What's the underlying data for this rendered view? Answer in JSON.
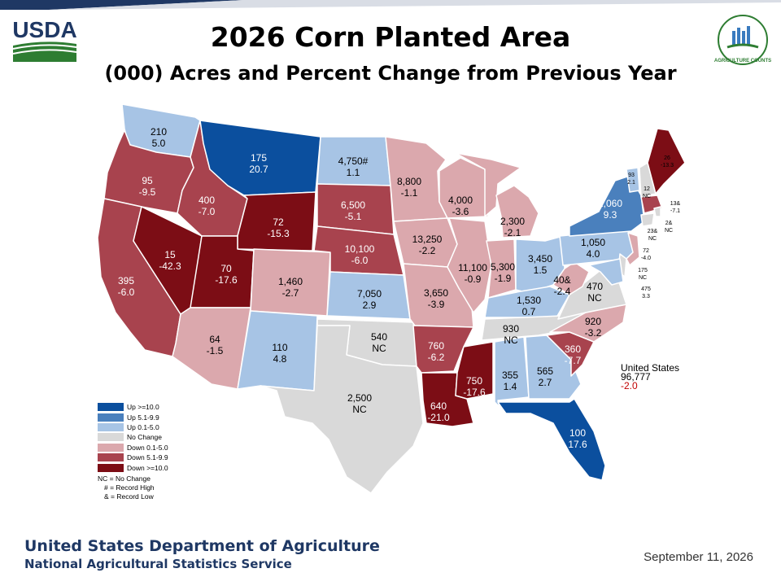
{
  "header": {
    "title": "2026 Corn Planted Area",
    "subtitle": "(000) Acres and Percent Change from Previous Year",
    "logo_text": "USDA",
    "badge_text": "AGRICULTURE COUNTS"
  },
  "colors": {
    "up_10": "#0b4f9e",
    "up_5": "#4a80bd",
    "up_0": "#a7c4e5",
    "no_change": "#d9d9d9",
    "down_0": "#dba8ad",
    "down_5": "#a8434e",
    "down_10": "#7c0d15",
    "border": "#ffffff",
    "us_change": "#c00000",
    "footer_text": "#1f3864"
  },
  "states": [
    {
      "id": "WA",
      "acres": "210",
      "change": "5.0",
      "cls": "up_0"
    },
    {
      "id": "OR",
      "acres": "95",
      "change": "-9.5",
      "cls": "down_5"
    },
    {
      "id": "CA",
      "acres": "395",
      "change": "-6.0",
      "cls": "down_5"
    },
    {
      "id": "ID",
      "acres": "400",
      "change": "-7.0",
      "cls": "down_5"
    },
    {
      "id": "NV",
      "acres": "15",
      "change": "-42.3",
      "cls": "down_10"
    },
    {
      "id": "MT",
      "acres": "175",
      "change": "20.7",
      "cls": "up_10"
    },
    {
      "id": "WY",
      "acres": "72",
      "change": "-15.3",
      "cls": "down_10"
    },
    {
      "id": "UT",
      "acres": "70",
      "change": "-17.6",
      "cls": "down_10"
    },
    {
      "id": "AZ",
      "acres": "64",
      "change": "-1.5",
      "cls": "down_0"
    },
    {
      "id": "CO",
      "acres": "1,460",
      "change": "-2.7",
      "cls": "down_0"
    },
    {
      "id": "NM",
      "acres": "110",
      "change": "4.8",
      "cls": "up_0"
    },
    {
      "id": "ND",
      "acres": "4,750#",
      "change": "1.1",
      "cls": "up_0"
    },
    {
      "id": "SD",
      "acres": "6,500",
      "change": "-5.1",
      "cls": "down_5"
    },
    {
      "id": "NE",
      "acres": "10,100",
      "change": "-6.0",
      "cls": "down_5"
    },
    {
      "id": "KS",
      "acres": "7,050",
      "change": "2.9",
      "cls": "up_0"
    },
    {
      "id": "OK",
      "acres": "540",
      "change": "NC",
      "cls": "no_change"
    },
    {
      "id": "TX",
      "acres": "2,500",
      "change": "NC",
      "cls": "no_change"
    },
    {
      "id": "MN",
      "acres": "8,800",
      "change": "-1.1",
      "cls": "down_0"
    },
    {
      "id": "IA",
      "acres": "13,250",
      "change": "-2.2",
      "cls": "down_0"
    },
    {
      "id": "MO",
      "acres": "3,650",
      "change": "-3.9",
      "cls": "down_0"
    },
    {
      "id": "AR",
      "acres": "760",
      "change": "-6.2",
      "cls": "down_5"
    },
    {
      "id": "LA",
      "acres": "640",
      "change": "-21.0",
      "cls": "down_10"
    },
    {
      "id": "WI",
      "acres": "4,000",
      "change": "-3.6",
      "cls": "down_0"
    },
    {
      "id": "IL",
      "acres": "11,100",
      "change": "-0.9",
      "cls": "down_0"
    },
    {
      "id": "MI",
      "acres": "2,300",
      "change": "-2.1",
      "cls": "down_0"
    },
    {
      "id": "IN",
      "acres": "5,300",
      "change": "-1.9",
      "cls": "down_0"
    },
    {
      "id": "OH",
      "acres": "3,450",
      "change": "1.5",
      "cls": "up_0"
    },
    {
      "id": "KY",
      "acres": "1,530",
      "change": "0.7",
      "cls": "up_0"
    },
    {
      "id": "TN",
      "acres": "930",
      "change": "NC",
      "cls": "no_change"
    },
    {
      "id": "MS",
      "acres": "750",
      "change": "-17.6",
      "cls": "down_10"
    },
    {
      "id": "AL",
      "acres": "355",
      "change": "1.4",
      "cls": "up_0"
    },
    {
      "id": "GA",
      "acres": "565",
      "change": "2.7",
      "cls": "up_0"
    },
    {
      "id": "FL",
      "acres": "100",
      "change": "17.6",
      "cls": "up_10"
    },
    {
      "id": "SC",
      "acres": "360",
      "change": "-7.7",
      "cls": "down_5"
    },
    {
      "id": "NC",
      "acres": "920",
      "change": "-3.2",
      "cls": "down_0"
    },
    {
      "id": "VA",
      "acres": "470",
      "change": "NC",
      "cls": "no_change"
    },
    {
      "id": "WV",
      "acres": "40&",
      "change": "-2.4",
      "cls": "down_0"
    },
    {
      "id": "PA",
      "acres": "1,050",
      "change": "4.0",
      "cls": "up_0"
    },
    {
      "id": "NY",
      "acres": "1,060",
      "change": "9.3",
      "cls": "up_5"
    },
    {
      "id": "VT",
      "acres": "93",
      "change": "2.1",
      "cls": "up_0"
    },
    {
      "id": "NH",
      "acres": "12",
      "change": "NC",
      "cls": "no_change"
    },
    {
      "id": "ME",
      "acres": "26",
      "change": "-13.3",
      "cls": "down_10"
    },
    {
      "id": "MA",
      "acres": "13&",
      "change": "-7.1",
      "cls": "down_5"
    },
    {
      "id": "RI",
      "acres": "2&",
      "change": "NC",
      "cls": "no_change"
    },
    {
      "id": "CT",
      "acres": "23&",
      "change": "NC",
      "cls": "no_change"
    },
    {
      "id": "NJ",
      "acres": "72",
      "change": "-4.0",
      "cls": "down_0"
    },
    {
      "id": "DE",
      "acres": "175",
      "change": "NC",
      "cls": "no_change"
    },
    {
      "id": "MD",
      "acres": "475",
      "change": "3.3",
      "cls": "up_0"
    }
  ],
  "legend": {
    "items": [
      {
        "label": "Up >=10.0",
        "cls": "up_10"
      },
      {
        "label": "Up 5.1-9.9",
        "cls": "up_5"
      },
      {
        "label": "Up 0.1-5.0",
        "cls": "up_0"
      },
      {
        "label": "No Change",
        "cls": "no_change"
      },
      {
        "label": "Down 0.1-5.0",
        "cls": "down_0"
      },
      {
        "label": "Down 5.1-9.9",
        "cls": "down_5"
      },
      {
        "label": "Down >=10.0",
        "cls": "down_10"
      }
    ],
    "notes": [
      "NC = No Change",
      "# = Record High",
      "& = Record Low"
    ]
  },
  "us_total": {
    "label": "United States",
    "acres": "96,777",
    "change": "-2.0"
  },
  "footer": {
    "agency": "United States Department of Agriculture",
    "service": "National Agricultural Statistics Service",
    "date": "September 11, 2026"
  }
}
